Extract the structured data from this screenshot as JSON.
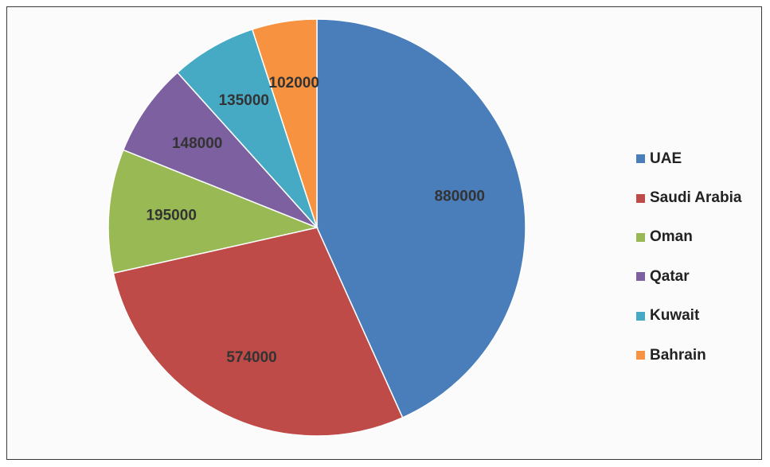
{
  "chart_data": {
    "type": "pie",
    "title": "",
    "categories": [
      "UAE",
      "Saudi Arabia",
      "Oman",
      "Qatar",
      "Kuwait",
      "Bahrain"
    ],
    "values": [
      880000,
      574000,
      195000,
      148000,
      135000,
      102000
    ],
    "colors": [
      "#4a7ebb",
      "#be4b48",
      "#98b954",
      "#7d60a0",
      "#46aac5",
      "#f69240"
    ],
    "data_labels_shown": true,
    "legend_position": "right"
  }
}
